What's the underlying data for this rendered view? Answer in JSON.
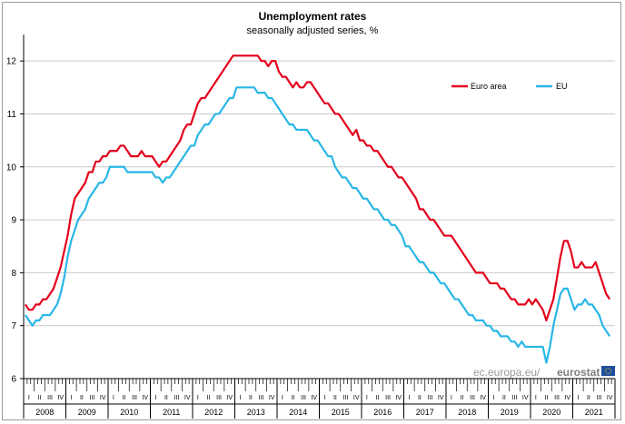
{
  "chart_data": {
    "type": "line",
    "title": "Unemployment rates",
    "subtitle": "seasonally adjusted series, %",
    "ylim": [
      6,
      12.5
    ],
    "yticks": [
      6,
      7,
      8,
      9,
      10,
      11,
      12
    ],
    "grid": true,
    "legend_position": "top-right",
    "quarter_labels": [
      "I",
      "II",
      "III",
      "IV"
    ],
    "years": [
      "2008",
      "2009",
      "2010",
      "2011",
      "2012",
      "2013",
      "2014",
      "2015",
      "2016",
      "2017",
      "2018",
      "2019",
      "2020",
      "2021"
    ],
    "x_start": "2008-01",
    "x_end": "2021-06",
    "series": [
      {
        "name": "Euro area",
        "color": "#e3001b",
        "values": [
          7.4,
          7.3,
          7.3,
          7.4,
          7.4,
          7.5,
          7.5,
          7.6,
          7.7,
          7.9,
          8.1,
          8.4,
          8.7,
          9.1,
          9.4,
          9.5,
          9.6,
          9.7,
          9.9,
          9.9,
          10.1,
          10.1,
          10.2,
          10.2,
          10.3,
          10.3,
          10.3,
          10.4,
          10.4,
          10.3,
          10.2,
          10.2,
          10.2,
          10.3,
          10.2,
          10.2,
          10.2,
          10.1,
          10.0,
          10.1,
          10.1,
          10.2,
          10.3,
          10.4,
          10.5,
          10.7,
          10.8,
          10.8,
          11.0,
          11.2,
          11.3,
          11.3,
          11.4,
          11.5,
          11.6,
          11.7,
          11.8,
          11.9,
          12.0,
          12.1,
          12.1,
          12.1,
          12.1,
          12.1,
          12.1,
          12.1,
          12.1,
          12.0,
          12.0,
          11.9,
          12.0,
          12.0,
          11.8,
          11.7,
          11.7,
          11.6,
          11.5,
          11.6,
          11.5,
          11.5,
          11.6,
          11.6,
          11.5,
          11.4,
          11.3,
          11.2,
          11.2,
          11.1,
          11.0,
          11.0,
          10.9,
          10.8,
          10.7,
          10.6,
          10.7,
          10.5,
          10.5,
          10.4,
          10.4,
          10.3,
          10.3,
          10.2,
          10.1,
          10.0,
          10.0,
          9.9,
          9.8,
          9.8,
          9.7,
          9.6,
          9.5,
          9.4,
          9.2,
          9.2,
          9.1,
          9.0,
          9.0,
          8.9,
          8.8,
          8.7,
          8.7,
          8.7,
          8.6,
          8.5,
          8.4,
          8.3,
          8.2,
          8.1,
          8.0,
          8.0,
          8.0,
          7.9,
          7.8,
          7.8,
          7.8,
          7.7,
          7.7,
          7.6,
          7.5,
          7.5,
          7.4,
          7.4,
          7.4,
          7.5,
          7.4,
          7.5,
          7.4,
          7.3,
          7.1,
          7.3,
          7.5,
          7.9,
          8.3,
          8.6,
          8.6,
          8.4,
          8.1,
          8.1,
          8.2,
          8.1,
          8.1,
          8.1,
          8.2,
          8.0,
          7.8,
          7.6,
          7.5
        ]
      },
      {
        "name": "EU",
        "color": "#29b6e6",
        "values": [
          7.2,
          7.1,
          7.0,
          7.1,
          7.1,
          7.2,
          7.2,
          7.2,
          7.3,
          7.4,
          7.6,
          7.9,
          8.3,
          8.6,
          8.8,
          9.0,
          9.1,
          9.2,
          9.4,
          9.5,
          9.6,
          9.7,
          9.7,
          9.8,
          10.0,
          10.0,
          10.0,
          10.0,
          10.0,
          9.9,
          9.9,
          9.9,
          9.9,
          9.9,
          9.9,
          9.9,
          9.9,
          9.8,
          9.8,
          9.7,
          9.8,
          9.8,
          9.9,
          10.0,
          10.1,
          10.2,
          10.3,
          10.4,
          10.4,
          10.6,
          10.7,
          10.8,
          10.8,
          10.9,
          11.0,
          11.0,
          11.1,
          11.2,
          11.3,
          11.3,
          11.5,
          11.5,
          11.5,
          11.5,
          11.5,
          11.5,
          11.4,
          11.4,
          11.4,
          11.3,
          11.3,
          11.2,
          11.1,
          11.0,
          10.9,
          10.8,
          10.8,
          10.7,
          10.7,
          10.7,
          10.7,
          10.6,
          10.5,
          10.5,
          10.4,
          10.3,
          10.2,
          10.2,
          10.0,
          9.9,
          9.8,
          9.8,
          9.7,
          9.6,
          9.6,
          9.5,
          9.4,
          9.4,
          9.3,
          9.2,
          9.2,
          9.1,
          9.0,
          9.0,
          8.9,
          8.9,
          8.8,
          8.7,
          8.5,
          8.5,
          8.4,
          8.3,
          8.2,
          8.2,
          8.1,
          8.0,
          8.0,
          7.9,
          7.8,
          7.8,
          7.7,
          7.6,
          7.5,
          7.5,
          7.4,
          7.3,
          7.2,
          7.2,
          7.1,
          7.1,
          7.1,
          7.0,
          7.0,
          6.9,
          6.9,
          6.8,
          6.8,
          6.8,
          6.7,
          6.7,
          6.6,
          6.7,
          6.6,
          6.6,
          6.6,
          6.6,
          6.6,
          6.6,
          6.3,
          6.6,
          7.0,
          7.3,
          7.6,
          7.7,
          7.7,
          7.5,
          7.3,
          7.4,
          7.4,
          7.5,
          7.4,
          7.4,
          7.3,
          7.2,
          7.0,
          6.9,
          6.8
        ]
      }
    ]
  },
  "source": {
    "prefix": "ec.europa.eu/",
    "brand": "eurostat"
  },
  "y_tick_labels": [
    "6",
    "7",
    "8",
    "9",
    "10",
    "11",
    "12"
  ]
}
